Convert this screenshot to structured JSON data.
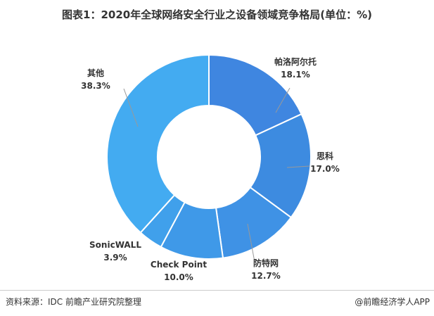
{
  "title": "图表1：2020年全球网络安全行业之设备领域竞争格局(单位：%)",
  "footer": {
    "source": "资料来源：IDC 前瞻产业研究院整理",
    "brand": "@前瞻经济学人APP"
  },
  "chart_data": {
    "type": "pie",
    "donut": true,
    "unit": "%",
    "categories": [
      "帕洛阿尔托",
      "思科",
      "防特网",
      "Check Point",
      "SonicWALL",
      "其他"
    ],
    "values": [
      18.1,
      17.0,
      12.7,
      10.0,
      3.9,
      38.3
    ],
    "labels": [
      "18.1%",
      "17.0%",
      "12.7%",
      "10.0%",
      "3.9%",
      "38.3%"
    ],
    "colors": [
      "#3f86e0",
      "#3d8be0",
      "#3f92e5",
      "#3f99e8",
      "#40a0eb",
      "#43abf1"
    ]
  }
}
